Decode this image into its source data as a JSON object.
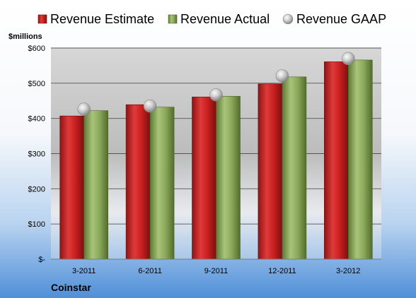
{
  "chart_data": {
    "type": "bar",
    "company": "Coinstar",
    "y_unit_label": "$millions",
    "categories": [
      "3-2011",
      "6-2011",
      "9-2011",
      "12-2011",
      "3-2012"
    ],
    "series": [
      {
        "name": "Revenue Estimate",
        "kind": "bar",
        "color": "#cc2222",
        "values": [
          407,
          439,
          461,
          498,
          561
        ]
      },
      {
        "name": "Revenue Actual",
        "kind": "bar",
        "color": "#8fae5a",
        "values": [
          422,
          432,
          463,
          518,
          566
        ]
      },
      {
        "name": "Revenue GAAP",
        "kind": "marker",
        "color": "#b8b8b8",
        "values": [
          426,
          435,
          467,
          521,
          570
        ]
      }
    ],
    "ylim": [
      0,
      600
    ],
    "yticks": [
      {
        "value": 0,
        "label": "$-"
      },
      {
        "value": 100,
        "label": "$100"
      },
      {
        "value": 200,
        "label": "$200"
      },
      {
        "value": 300,
        "label": "$300"
      },
      {
        "value": 400,
        "label": "$400"
      },
      {
        "value": 500,
        "label": "$500"
      },
      {
        "value": 600,
        "label": "$600"
      }
    ],
    "grid": true,
    "legend_position": "top"
  }
}
